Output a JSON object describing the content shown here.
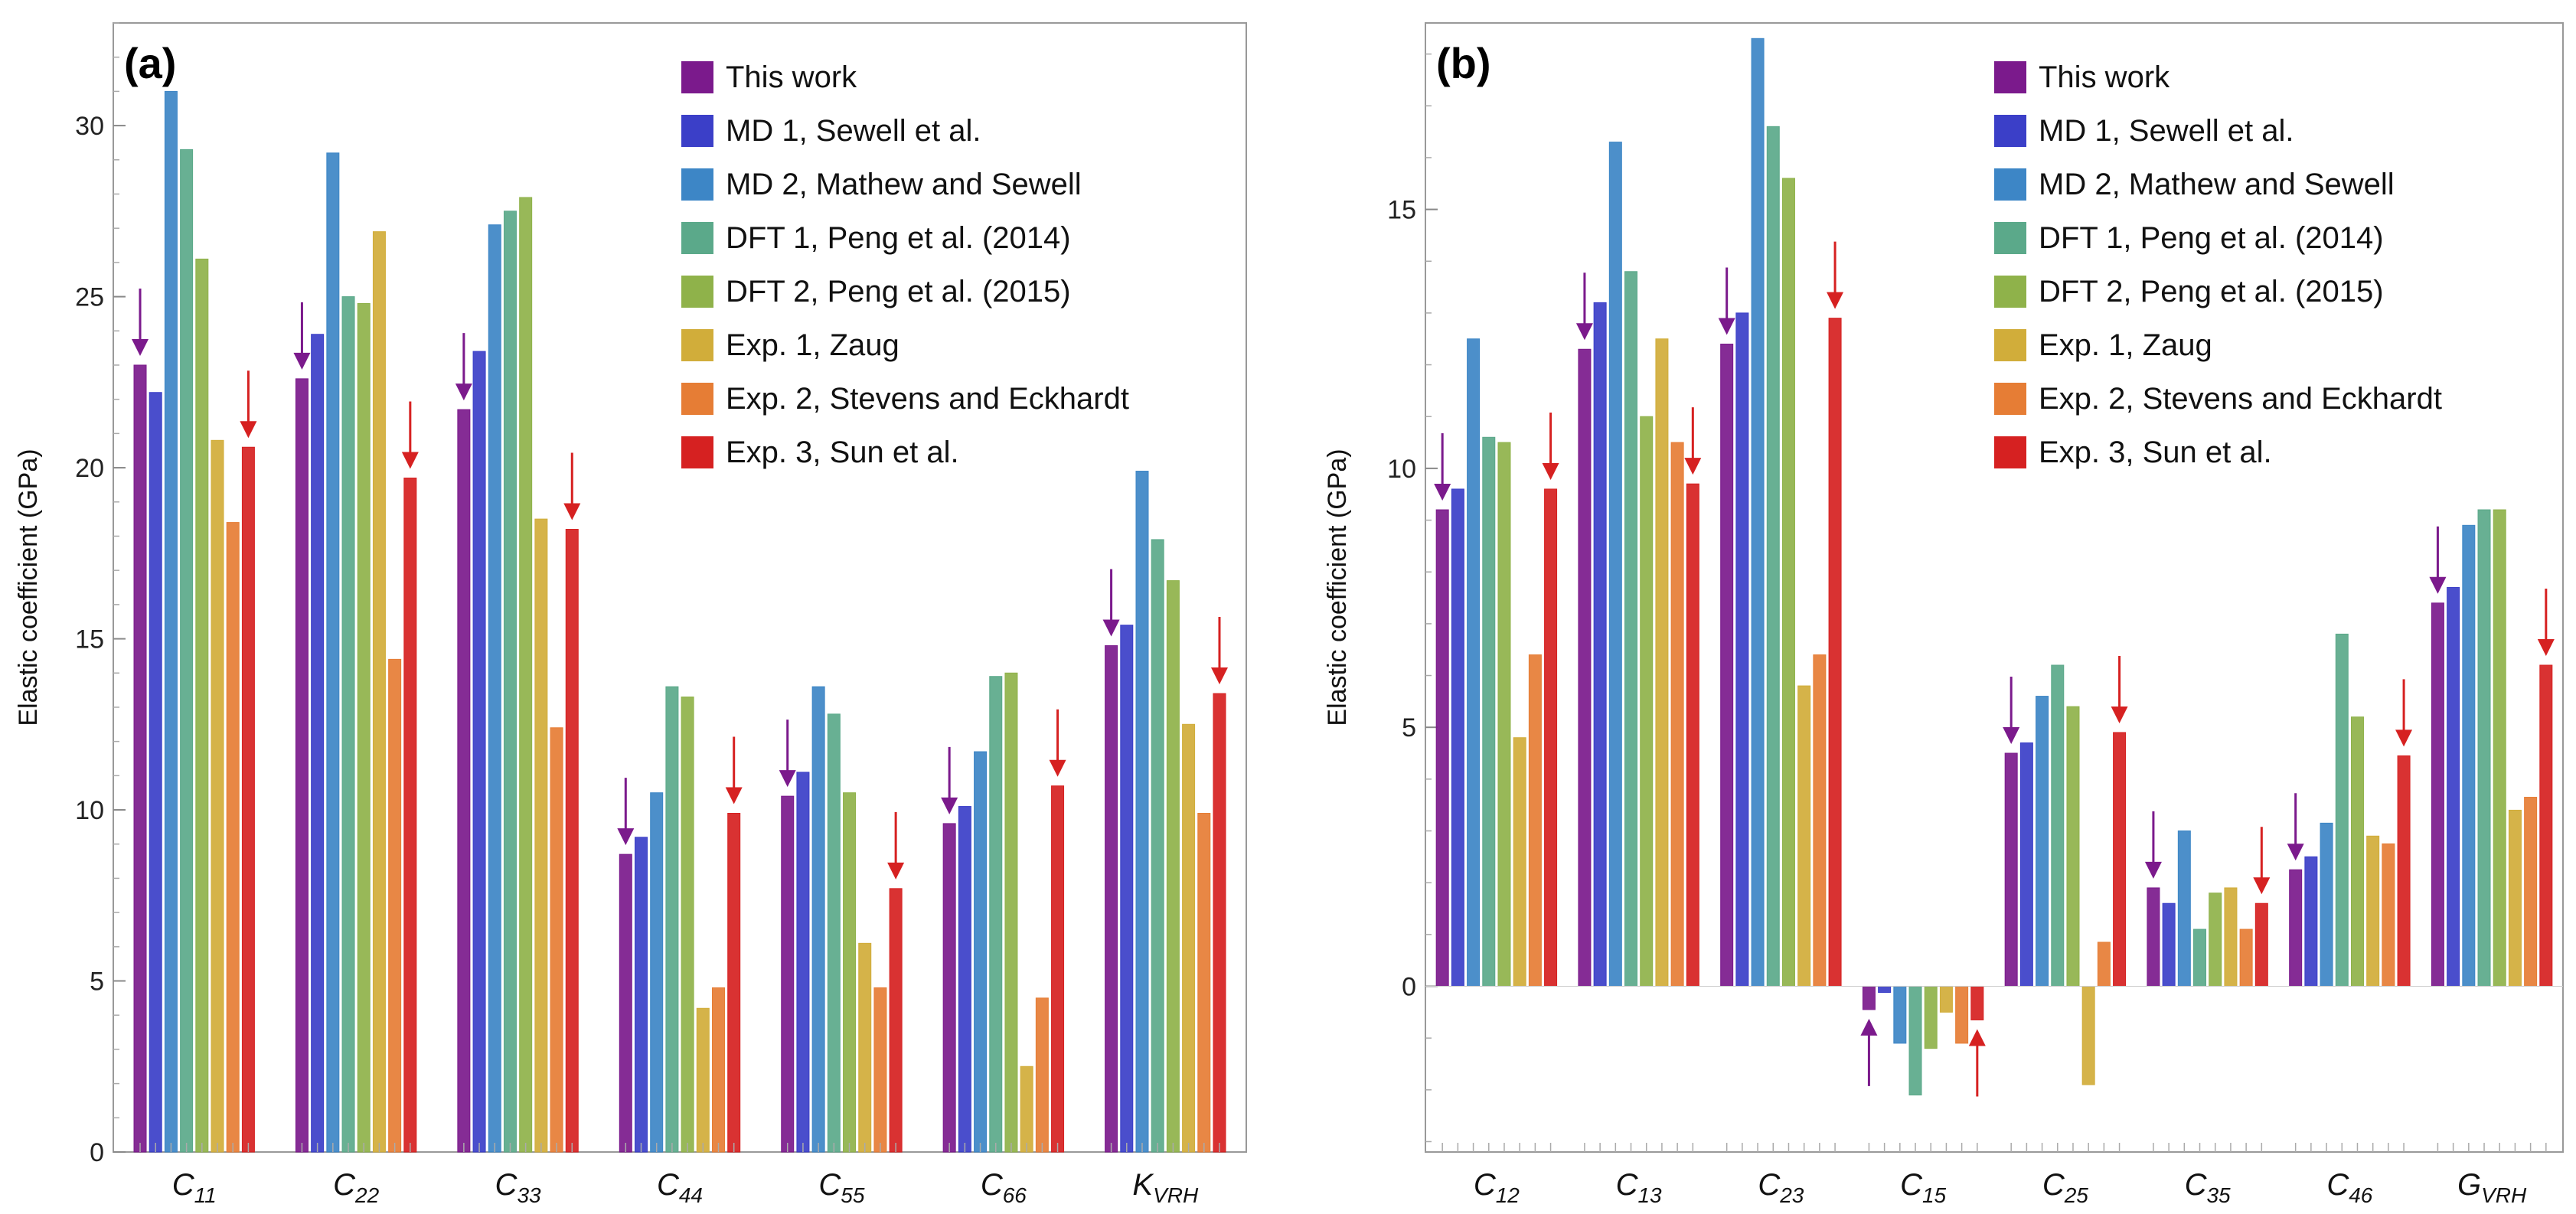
{
  "chart_data": [
    {
      "type": "bar",
      "panel_label": "(a)",
      "ylabel": "Elastic coefficient (GPa)",
      "ylim": [
        0,
        33
      ],
      "yticks": [
        0,
        5,
        10,
        15,
        20,
        25,
        30
      ],
      "legend_position": "top-right",
      "grid": false,
      "categories": [
        {
          "base": "C",
          "sub": "11"
        },
        {
          "base": "C",
          "sub": "22"
        },
        {
          "base": "C",
          "sub": "33"
        },
        {
          "base": "C",
          "sub": "44"
        },
        {
          "base": "C",
          "sub": "55"
        },
        {
          "base": "C",
          "sub": "66"
        },
        {
          "base": "K",
          "sub": "VRH"
        }
      ],
      "series": [
        {
          "name": "This work",
          "color": "#7b1a8c",
          "values": [
            23.0,
            22.6,
            21.7,
            8.7,
            10.4,
            9.6,
            14.8
          ]
        },
        {
          "name": "MD 1, Sewell et al.",
          "color": "#3b3fc8",
          "values": [
            22.2,
            23.9,
            23.4,
            9.2,
            11.1,
            10.1,
            15.4
          ]
        },
        {
          "name": "MD 2, Mathew and Sewell",
          "color": "#3d86c6",
          "values": [
            31.0,
            29.2,
            27.1,
            10.5,
            13.6,
            11.7,
            19.9
          ]
        },
        {
          "name": "DFT 1, Peng et al. (2014)",
          "color": "#5ba98a",
          "values": [
            29.3,
            25.0,
            27.5,
            13.6,
            12.8,
            13.9,
            17.9
          ]
        },
        {
          "name": "DFT 2, Peng et al. (2015)",
          "color": "#8fb24a",
          "values": [
            26.1,
            24.8,
            27.9,
            13.3,
            10.5,
            14.0,
            16.7
          ]
        },
        {
          "name": "Exp. 1, Zaug",
          "color": "#d1ad3a",
          "values": [
            20.8,
            26.9,
            18.5,
            4.2,
            6.1,
            2.5,
            12.5
          ]
        },
        {
          "name": "Exp. 2, Stevens and Eckhardt",
          "color": "#e67d35",
          "values": [
            18.4,
            14.4,
            12.4,
            4.8,
            4.8,
            4.5,
            9.9
          ]
        },
        {
          "name": "Exp. 3, Sun et al.",
          "color": "#d62121",
          "values": [
            20.6,
            19.7,
            18.2,
            9.9,
            7.7,
            10.7,
            13.4
          ]
        }
      ]
    },
    {
      "type": "bar",
      "panel_label": "(b)",
      "ylabel": "Elastic coefficient (GPa)",
      "ylim": [
        -3.2,
        18.6
      ],
      "yticks": [
        0,
        5,
        10,
        15
      ],
      "legend_position": "top-right",
      "grid": false,
      "categories": [
        {
          "base": "C",
          "sub": "12"
        },
        {
          "base": "C",
          "sub": "13"
        },
        {
          "base": "C",
          "sub": "23"
        },
        {
          "base": "C",
          "sub": "15"
        },
        {
          "base": "C",
          "sub": "25"
        },
        {
          "base": "C",
          "sub": "35"
        },
        {
          "base": "C",
          "sub": "46"
        },
        {
          "base": "G",
          "sub": "VRH"
        }
      ],
      "series": [
        {
          "name": "This work",
          "color": "#7b1a8c",
          "values": [
            9.2,
            12.3,
            12.4,
            -0.45,
            4.5,
            1.9,
            2.25,
            7.4
          ]
        },
        {
          "name": "MD 1, Sewell et al.",
          "color": "#3b3fc8",
          "values": [
            9.6,
            13.2,
            13.0,
            -0.12,
            4.7,
            1.6,
            2.5,
            7.7
          ]
        },
        {
          "name": "MD 2, Mathew and Sewell",
          "color": "#3d86c6",
          "values": [
            12.5,
            16.3,
            18.3,
            -1.1,
            5.6,
            3.0,
            3.15,
            8.9
          ]
        },
        {
          "name": "DFT 1, Peng et al. (2014)",
          "color": "#5ba98a",
          "values": [
            10.6,
            13.8,
            16.6,
            -2.1,
            6.2,
            1.1,
            6.8,
            9.2
          ]
        },
        {
          "name": "DFT 2, Peng et al. (2015)",
          "color": "#8fb24a",
          "values": [
            10.5,
            11.0,
            15.6,
            -1.2,
            5.4,
            1.8,
            5.2,
            9.2
          ]
        },
        {
          "name": "Exp. 1, Zaug",
          "color": "#d1ad3a",
          "values": [
            4.8,
            12.5,
            5.8,
            -0.5,
            -1.9,
            1.9,
            2.9,
            3.4
          ]
        },
        {
          "name": "Exp. 2, Stevens and Eckhardt",
          "color": "#e67d35",
          "values": [
            6.4,
            10.5,
            6.4,
            -1.1,
            0.85,
            1.1,
            2.75,
            3.65
          ]
        },
        {
          "name": "Exp. 3, Sun et al.",
          "color": "#d62121",
          "values": [
            9.6,
            9.7,
            12.9,
            -0.65,
            4.9,
            1.6,
            4.45,
            6.2
          ]
        }
      ]
    }
  ]
}
